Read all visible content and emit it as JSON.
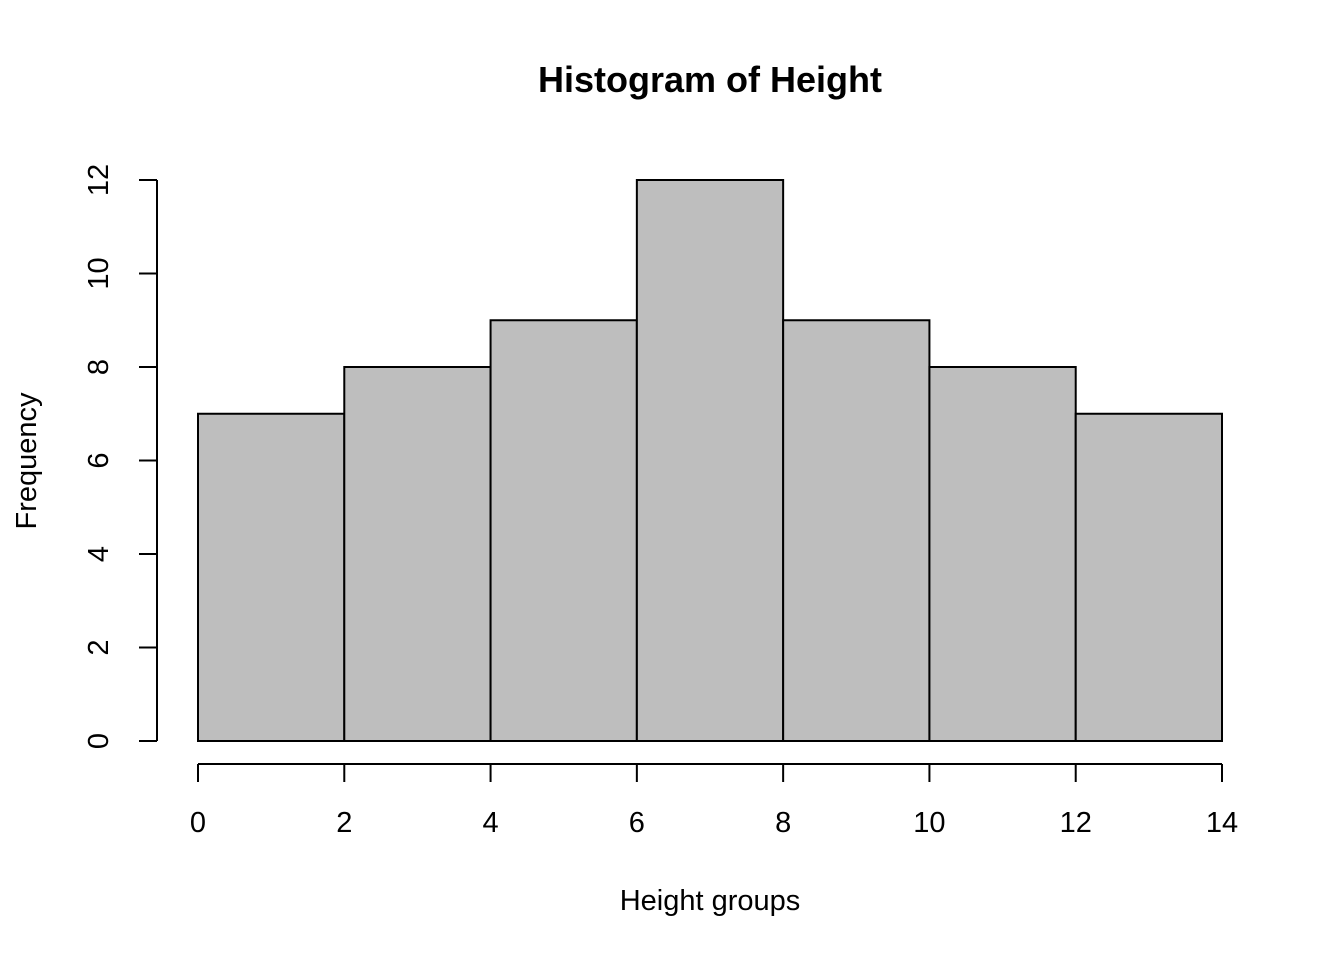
{
  "chart_data": {
    "type": "bar",
    "title": "Histogram of Height",
    "xlabel": "Height groups",
    "ylabel": "Frequency",
    "bins": [
      {
        "start": 0,
        "end": 2,
        "count": 7
      },
      {
        "start": 2,
        "end": 4,
        "count": 8
      },
      {
        "start": 4,
        "end": 6,
        "count": 9
      },
      {
        "start": 6,
        "end": 8,
        "count": 12
      },
      {
        "start": 8,
        "end": 10,
        "count": 9
      },
      {
        "start": 10,
        "end": 12,
        "count": 8
      },
      {
        "start": 12,
        "end": 14,
        "count": 7
      }
    ],
    "xlim": [
      0,
      14
    ],
    "ylim": [
      0,
      12
    ],
    "x_ticks": [
      0,
      2,
      4,
      6,
      8,
      10,
      12,
      14
    ],
    "y_ticks": [
      0,
      2,
      4,
      6,
      8,
      10,
      12
    ],
    "grid": false,
    "legend": "none",
    "colors": {
      "bar_fill": "#bebebe",
      "bar_stroke": "#000000",
      "axis": "#000000"
    }
  }
}
